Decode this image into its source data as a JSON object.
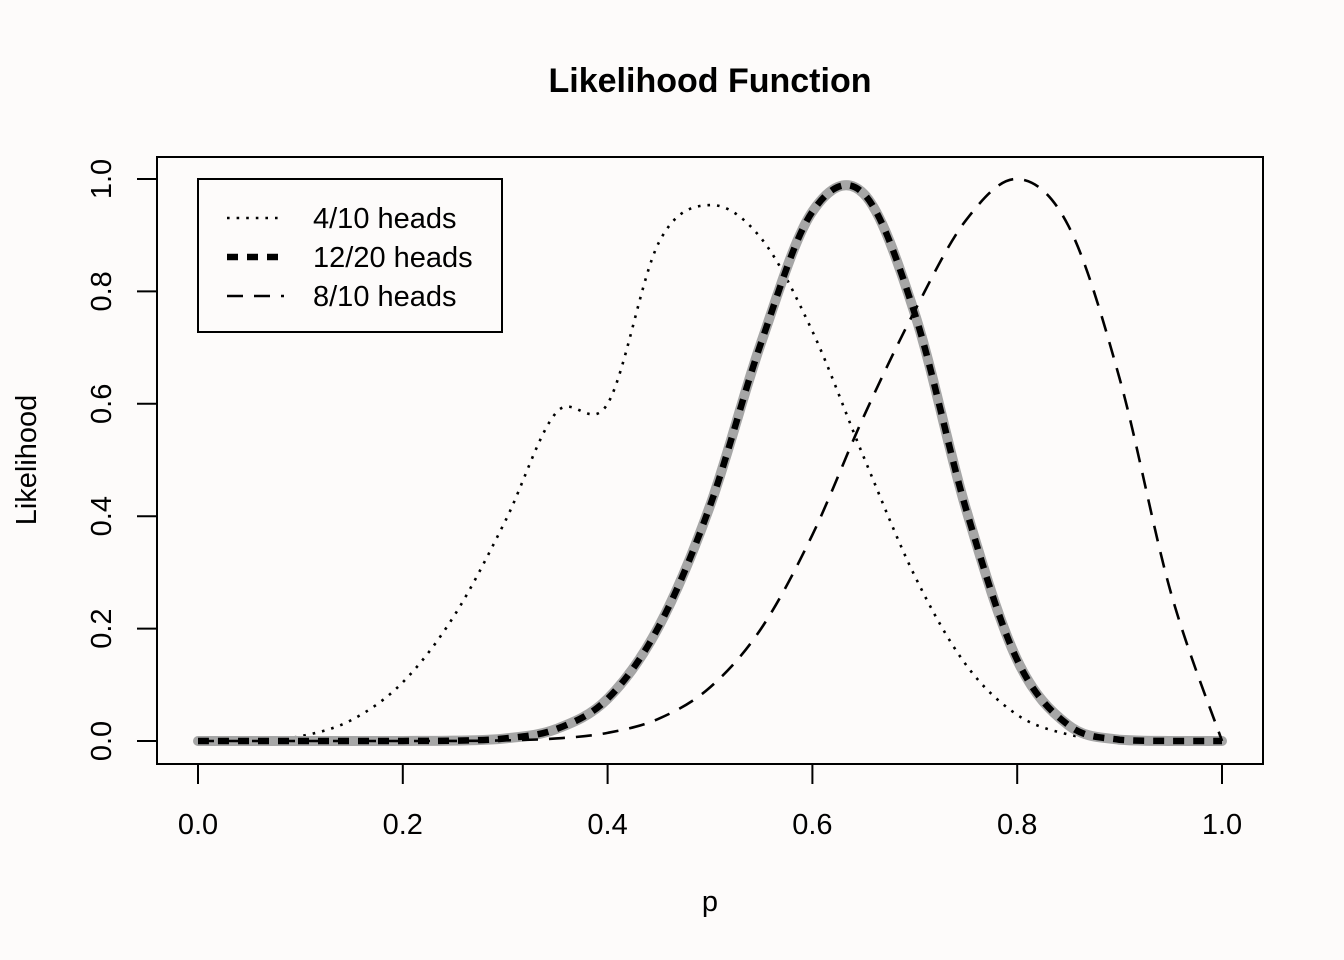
{
  "chart_data": {
    "type": "line",
    "title": "Likelihood Function",
    "xlabel": "p",
    "ylabel": "Likelihood",
    "xlim": [
      0.0,
      1.0
    ],
    "ylim": [
      0.0,
      1.0
    ],
    "xticks": [
      "0.0",
      "0.2",
      "0.4",
      "0.6",
      "0.8",
      "1.0"
    ],
    "yticks": [
      "0.0",
      "0.2",
      "0.4",
      "0.6",
      "0.8",
      "1.0"
    ],
    "grid": false,
    "legend_position": "top-left",
    "x": [
      0.0,
      0.05,
      0.1,
      0.15,
      0.2,
      0.25,
      0.3,
      0.35,
      0.4,
      0.45,
      0.5,
      0.55,
      0.6,
      0.65,
      0.7,
      0.75,
      0.8,
      0.85,
      0.9,
      0.95,
      1.0
    ],
    "series": [
      {
        "name": "4/10 heads",
        "style": "dotted",
        "color": "#000000",
        "values": [
          0.0,
          0.0006,
          0.0084,
          0.0374,
          0.1045,
          0.2224,
          0.3911,
          0.5848,
          0.6,
          0.8868,
          0.9537,
          0.8943,
          0.729,
          0.5058,
          0.2935,
          0.1356,
          0.0466,
          0.0116,
          0.0019,
          0.0001,
          0.0
        ]
      },
      {
        "name": "12/20 heads",
        "style": "thick-dashed",
        "color": "#000000",
        "halo_color": "#a6a6a6",
        "values": [
          0.0,
          0.0,
          0.0,
          0.0,
          0.0001,
          0.0006,
          0.0046,
          0.0214,
          0.0752,
          0.2037,
          0.4184,
          0.7092,
          0.942,
          0.974,
          0.7602,
          0.4128,
          0.1441,
          0.0282,
          0.0022,
          0.0,
          0.0
        ]
      },
      {
        "name": "8/10 heads",
        "style": "dashed",
        "color": "#000000",
        "values": [
          0.0,
          0.0,
          0.0,
          0.0,
          0.0,
          0.0001,
          0.0011,
          0.0045,
          0.0145,
          0.0397,
          0.0954,
          0.2002,
          0.3669,
          0.5769,
          0.7656,
          0.9267,
          1.0,
          0.9167,
          0.645,
          0.2644,
          0.0
        ]
      }
    ]
  }
}
